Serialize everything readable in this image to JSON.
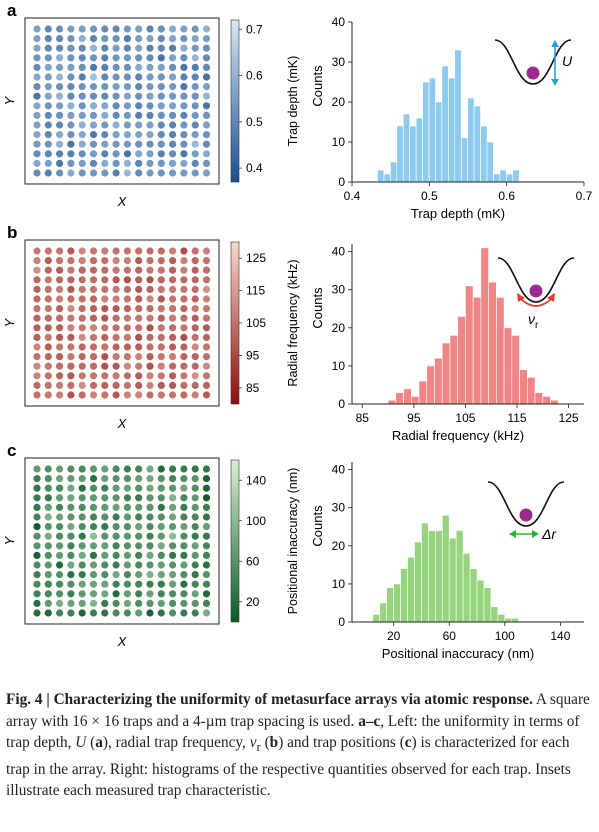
{
  "colors": {
    "blue_dark": "#1a4f8e",
    "blue_light": "#d6e6f4",
    "red_dark": "#8b0d0d",
    "red_light": "#f8d8cb",
    "green_dark": "#0b5a29",
    "green_light": "#d9f0d2",
    "bar_blue": "#8ccbed",
    "bar_red": "#f08585",
    "bar_green": "#96d47e",
    "inset_arrow_blue": "#2aa0d8",
    "inset_arrow_red": "#e23d2a",
    "inset_arrow_green": "#2db02d",
    "atom": "#9b2b8e"
  },
  "panels": [
    {
      "letter": "a",
      "map_xlabel": "X",
      "map_ylabel": "Y",
      "colorbar_label": "Trap depth (mK)",
      "colorbar_ticks": [
        "0.7",
        "0.6",
        "0.5",
        "0.4"
      ],
      "inset_label": "U",
      "palette": "blue"
    },
    {
      "letter": "b",
      "map_xlabel": "X",
      "map_ylabel": "Y",
      "colorbar_label": "Radial frequency (kHz)",
      "colorbar_ticks": [
        "125",
        "115",
        "105",
        "95",
        "85"
      ],
      "inset_label": "ν",
      "inset_sub": "r",
      "palette": "red"
    },
    {
      "letter": "c",
      "map_xlabel": "X",
      "map_ylabel": "Y",
      "colorbar_label": "Positional inaccuracy (nm)",
      "colorbar_ticks": [
        "140",
        "100",
        "60",
        "20"
      ],
      "inset_label": "Δr",
      "palette": "green"
    }
  ],
  "chart_data": [
    {
      "type": "bar",
      "panel": "a",
      "xlabel": "Trap depth (mK)",
      "ylabel": "Counts",
      "xlim": [
        0.4,
        0.7
      ],
      "ylim": [
        0,
        40
      ],
      "xticks": [
        "0.4",
        "0.5",
        "0.6",
        "0.7"
      ],
      "yticks": [
        "0",
        "10",
        "20",
        "30",
        "40"
      ],
      "bin_start": 0.433,
      "bin_width": 0.00833,
      "values": [
        3,
        2,
        5,
        14,
        17,
        14,
        16,
        25,
        26,
        20,
        29,
        26,
        33,
        11,
        21,
        19,
        14,
        10,
        2,
        3,
        2,
        3
      ]
    },
    {
      "type": "bar",
      "panel": "b",
      "xlabel": "Radial frequency (kHz)",
      "ylabel": "Counts",
      "xlim": [
        83,
        128
      ],
      "ylim": [
        0,
        42
      ],
      "xticks": [
        "85",
        "95",
        "105",
        "115",
        "125"
      ],
      "yticks": [
        "0",
        "10",
        "20",
        "30",
        "40"
      ],
      "bin_start": 90,
      "bin_width": 1.5,
      "values": [
        1,
        3,
        4,
        2,
        6,
        10,
        12,
        16,
        18,
        23,
        31,
        28,
        41,
        32,
        28,
        20,
        18,
        9,
        7,
        3,
        2,
        1
      ]
    },
    {
      "type": "bar",
      "panel": "c",
      "xlabel": "Positional inaccuracy (nm)",
      "ylabel": "Counts",
      "xlim": [
        -10,
        157
      ],
      "ylim": [
        0,
        42
      ],
      "xticks": [
        "20",
        "60",
        "100",
        "140"
      ],
      "yticks": [
        "0",
        "10",
        "20",
        "30",
        "40"
      ],
      "bin_start": 5,
      "bin_width": 5,
      "values": [
        2,
        5,
        9,
        10,
        14,
        17,
        21,
        26,
        24,
        24,
        28,
        22,
        24,
        18,
        14,
        11,
        9,
        4,
        2,
        1,
        1
      ]
    },
    {
      "type": "heatmap",
      "panel": "a",
      "rows": 16,
      "cols": 16,
      "vmin": 0.37,
      "vmax": 0.72,
      "base": 0.53,
      "spread": 0.05,
      "seed": 11
    },
    {
      "type": "heatmap",
      "panel": "b",
      "rows": 16,
      "cols": 16,
      "vmin": 80,
      "vmax": 130,
      "base": 104,
      "spread": 5,
      "seed": 23
    },
    {
      "type": "heatmap",
      "panel": "c",
      "rows": 16,
      "cols": 16,
      "vmin": 0,
      "vmax": 160,
      "base": 60,
      "spread": 25,
      "seed": 37,
      "edge_high": true
    }
  ],
  "caption": {
    "fig_label": "Fig. 4 | ",
    "title": "Characterizing the uniformity of metasurface arrays via atomic response.",
    "body1": " A square array with 16 × 16 traps and a 4-µm trap spacing is used. ",
    "range": "a–c",
    "body2": ", Left: the uniformity in terms of trap depth, ",
    "sym1": "U",
    "body3": " (",
    "ref_a": "a",
    "body4": "), radial trap frequency, ",
    "sym2": "ν",
    "sym2_sub": "r",
    "body5": " (",
    "ref_b": "b",
    "body6": ") and trap positions (",
    "ref_c": "c",
    "body7": ") is characterized for each trap in the array. Right: histograms of the respective quantities observed for each trap. Insets illustrate each measured trap characteristic."
  }
}
